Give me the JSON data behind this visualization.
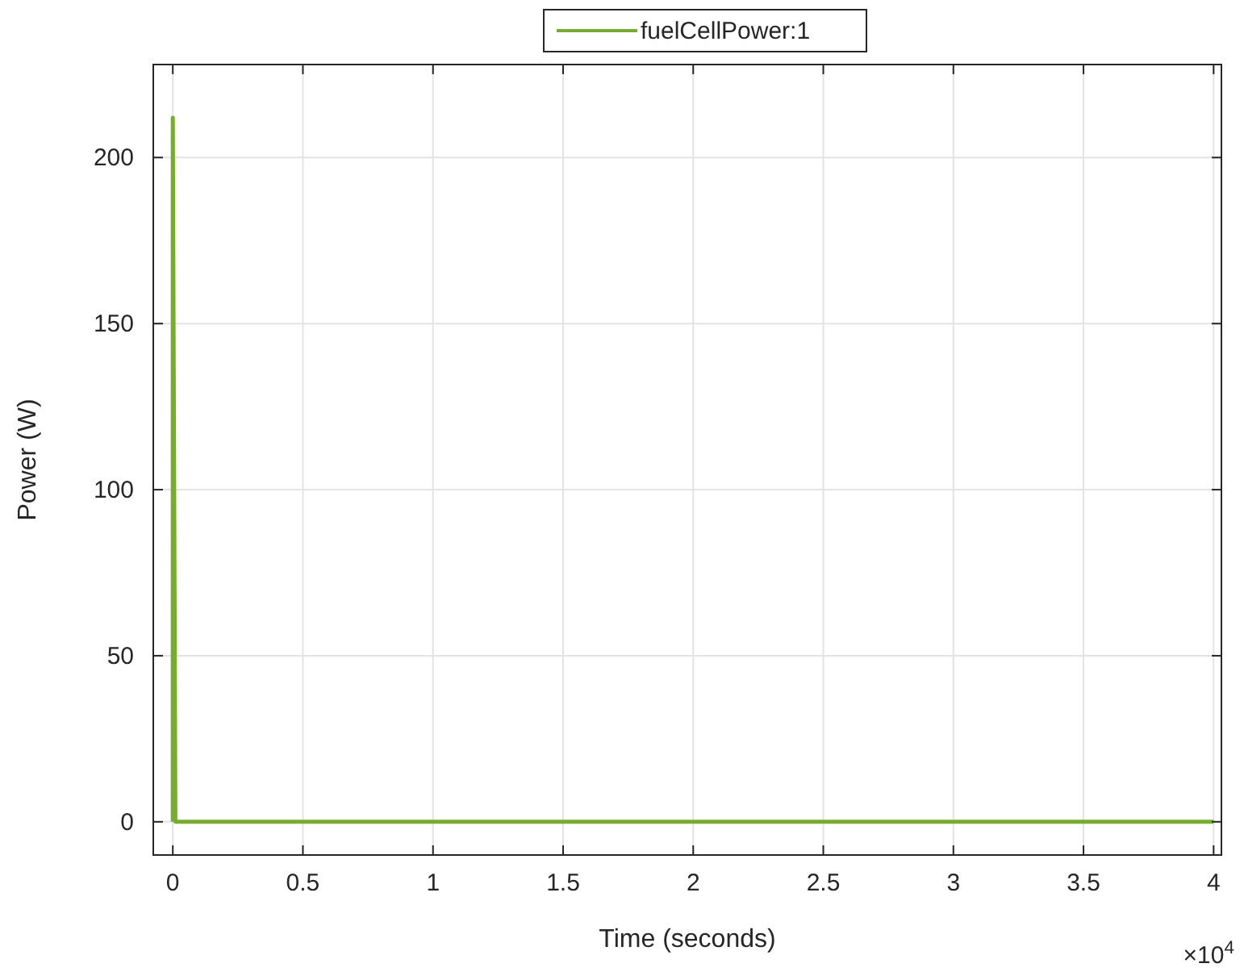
{
  "chart_data": {
    "type": "line",
    "xlabel": "Time (seconds)",
    "ylabel": "Power (W)",
    "x": [
      0,
      0,
      0.01,
      4
    ],
    "series": [
      {
        "name": "fuelCellPower:1",
        "color": "#77ac30",
        "values": [
          0,
          212,
          0,
          0
        ]
      }
    ],
    "xlim": [
      -0.075,
      4.03
    ],
    "ylim": [
      -10,
      228
    ],
    "xticks": [
      0,
      0.5,
      1,
      1.5,
      2,
      2.5,
      3,
      3.5,
      4
    ],
    "yticks": [
      0,
      50,
      100,
      150,
      200
    ],
    "annotations": [
      "×10$^{4}$"
    ],
    "grid": true,
    "legend": "top",
    "line_style": "solid"
  }
}
